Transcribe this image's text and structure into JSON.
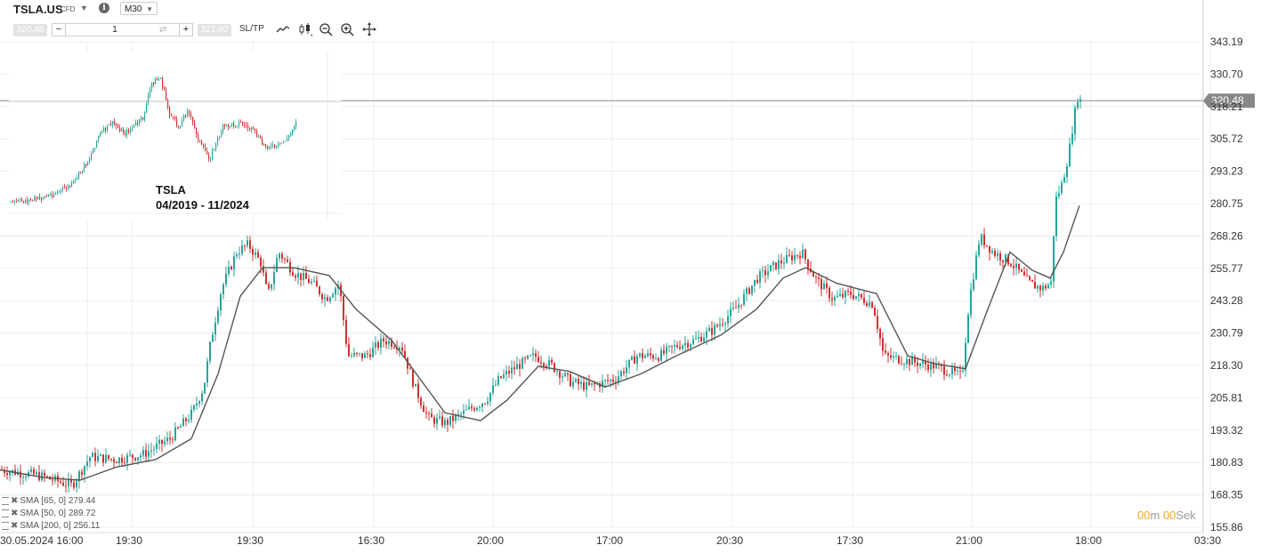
{
  "toolbar": {
    "symbol": "TSLA.US",
    "instrument_type": "CFD",
    "timeframe": "M30",
    "sell_price": "320.48",
    "buy_price": "321.60",
    "volume": "1",
    "minus_label": "−",
    "plus_label": "+",
    "switch_glyph": "⇄",
    "sltp_label": "SL/TP",
    "tools": [
      "line-chart-icon",
      "candlestick-icon",
      "zoom-out-icon",
      "zoom-in-icon",
      "move-icon"
    ]
  },
  "price_label": "320.48",
  "countdown": {
    "minutes": "00",
    "minutes_unit": "m",
    "seconds": "00",
    "seconds_unit": "Sek"
  },
  "legend": [
    {
      "label": "SMA [65, 0]",
      "value": "279.44"
    },
    {
      "label": "SMA [50, 0]",
      "value": "289.72"
    },
    {
      "label": "SMA [200, 0]",
      "value": "256.11"
    }
  ],
  "inset": {
    "title": "TSLA",
    "range": "04/2019 - 11/2024"
  },
  "colors": {
    "up": "#26a69a",
    "down": "#d32f2f",
    "sma": "#555555",
    "price_line": "#888888",
    "accent": "#f5a623"
  },
  "chart_data": {
    "type": "candlestick",
    "y_ticks": [
      343.19,
      330.7,
      318.21,
      305.72,
      293.23,
      280.75,
      268.26,
      255.77,
      243.28,
      230.79,
      218.3,
      205.81,
      193.32,
      180.83,
      168.35,
      155.86
    ],
    "ylim": [
      155.86,
      343.19
    ],
    "x_ticks": [
      "30.05.2024 16:00",
      "19:30",
      "19:30",
      "16:30",
      "20:00",
      "17:00",
      "20:30",
      "17:30",
      "21:00",
      "18:00",
      "03:30"
    ],
    "current_price": 320.48,
    "price_path": [
      [
        0,
        178
      ],
      [
        40,
        176
      ],
      [
        80,
        172
      ],
      [
        100,
        183
      ],
      [
        130,
        182
      ],
      [
        160,
        184
      ],
      [
        190,
        190
      ],
      [
        215,
        200
      ],
      [
        228,
        210
      ],
      [
        236,
        228
      ],
      [
        248,
        248
      ],
      [
        265,
        262
      ],
      [
        278,
        265
      ],
      [
        292,
        258
      ],
      [
        300,
        245
      ],
      [
        312,
        262
      ],
      [
        330,
        254
      ],
      [
        350,
        250
      ],
      [
        365,
        244
      ],
      [
        380,
        250
      ],
      [
        390,
        222
      ],
      [
        410,
        222
      ],
      [
        430,
        228
      ],
      [
        450,
        226
      ],
      [
        465,
        210
      ],
      [
        480,
        198
      ],
      [
        500,
        196
      ],
      [
        520,
        200
      ],
      [
        545,
        205
      ],
      [
        560,
        213
      ],
      [
        580,
        218
      ],
      [
        600,
        222
      ],
      [
        620,
        218
      ],
      [
        640,
        212
      ],
      [
        660,
        210
      ],
      [
        690,
        213
      ],
      [
        715,
        222
      ],
      [
        740,
        222
      ],
      [
        760,
        226
      ],
      [
        780,
        228
      ],
      [
        800,
        232
      ],
      [
        825,
        240
      ],
      [
        850,
        252
      ],
      [
        875,
        258
      ],
      [
        900,
        262
      ],
      [
        915,
        252
      ],
      [
        935,
        244
      ],
      [
        955,
        246
      ],
      [
        980,
        242
      ],
      [
        992,
        222
      ],
      [
        1020,
        220
      ],
      [
        1050,
        218
      ],
      [
        1080,
        214
      ],
      [
        1088,
        243
      ],
      [
        1100,
        268
      ],
      [
        1115,
        262
      ],
      [
        1135,
        258
      ],
      [
        1155,
        250
      ],
      [
        1170,
        248
      ],
      [
        1180,
        250
      ],
      [
        1185,
        282
      ],
      [
        1192,
        288
      ],
      [
        1200,
        300
      ],
      [
        1205,
        312
      ],
      [
        1210,
        322
      ],
      [
        1213,
        320.48
      ]
    ],
    "sma_line": [
      [
        0,
        178
      ],
      [
        50,
        175
      ],
      [
        90,
        174
      ],
      [
        130,
        179
      ],
      [
        175,
        182
      ],
      [
        215,
        190
      ],
      [
        245,
        215
      ],
      [
        270,
        245
      ],
      [
        295,
        256
      ],
      [
        330,
        256
      ],
      [
        370,
        253
      ],
      [
        400,
        240
      ],
      [
        440,
        228
      ],
      [
        470,
        214
      ],
      [
        500,
        200
      ],
      [
        540,
        197
      ],
      [
        570,
        205
      ],
      [
        605,
        218
      ],
      [
        640,
        216
      ],
      [
        680,
        210
      ],
      [
        720,
        215
      ],
      [
        760,
        222
      ],
      [
        810,
        230
      ],
      [
        850,
        240
      ],
      [
        880,
        252
      ],
      [
        905,
        256
      ],
      [
        940,
        250
      ],
      [
        985,
        246
      ],
      [
        1020,
        222
      ],
      [
        1050,
        219
      ],
      [
        1085,
        217
      ],
      [
        1110,
        240
      ],
      [
        1135,
        262
      ],
      [
        1160,
        255
      ],
      [
        1180,
        252
      ],
      [
        1195,
        262
      ],
      [
        1213,
        280
      ]
    ]
  }
}
